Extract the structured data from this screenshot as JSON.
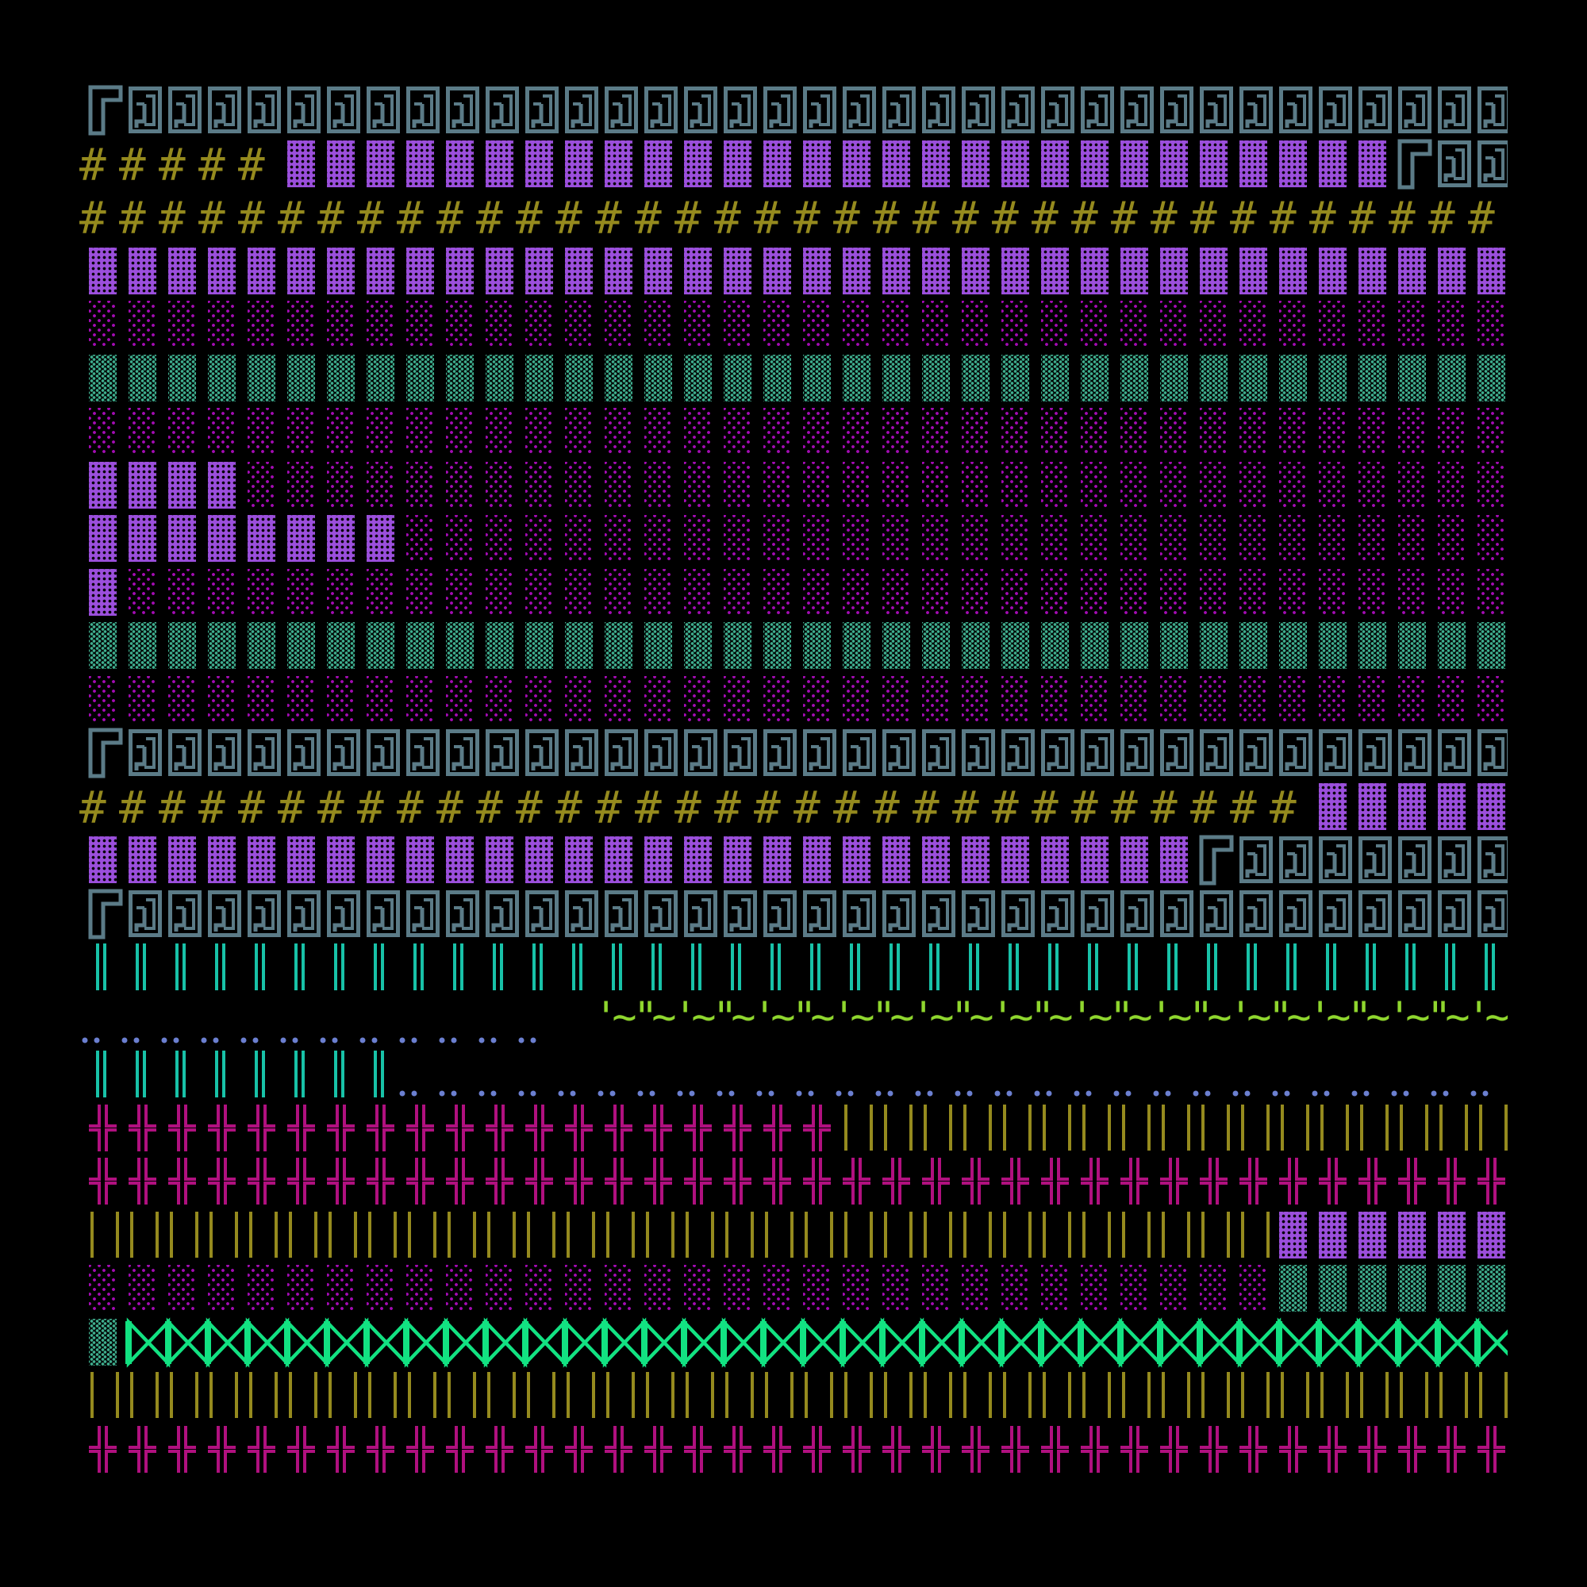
{
  "background": "#000000",
  "glyphs": {
    "corner": {
      "char": "╔",
      "color": "#5b7b87"
    },
    "box": {
      "char": "▣",
      "color": "#5b7b87"
    },
    "hash": {
      "char": "#",
      "color": "#958a1e"
    },
    "block": {
      "char": "▓",
      "color": "#9b4fdc"
    },
    "mag": {
      "char": "░",
      "color": "#a40cb4"
    },
    "teal": {
      "char": "▒",
      "color": "#3fae8e"
    },
    "vbar": {
      "char": "‖",
      "color": "#18c2a8"
    },
    "dots": {
      "char": "‥",
      "color": "#6b7fd0"
    },
    "wave": {
      "chars": [
        "'~",
        "\"~"
      ],
      "color": "#8fd62e"
    },
    "cross": {
      "char": "╬",
      "color": "#b0107f"
    },
    "ybar": {
      "char": "| |",
      "color": "#958a1e"
    },
    "bowtie": {
      "char": "⋈",
      "color": "#12e282"
    }
  },
  "rows": [
    [
      [
        "corner",
        1
      ],
      [
        "box",
        35
      ]
    ],
    [
      [
        "hash",
        5
      ],
      [
        "block",
        28
      ],
      [
        "corner",
        1
      ],
      [
        "box",
        2
      ]
    ],
    [
      [
        "hash",
        36
      ]
    ],
    [
      [
        "block",
        36
      ]
    ],
    [
      [
        "mag",
        36
      ]
    ],
    [
      [
        "teal",
        36
      ]
    ],
    [
      [
        "mag",
        36
      ]
    ],
    [
      [
        "block",
        4
      ],
      [
        "mag",
        32
      ]
    ],
    [
      [
        "block",
        8
      ],
      [
        "mag",
        28
      ]
    ],
    [
      [
        "block",
        1
      ],
      [
        "mag",
        35
      ]
    ],
    [
      [
        "teal",
        36
      ]
    ],
    [
      [
        "mag",
        36
      ]
    ],
    [
      [
        "corner",
        1
      ],
      [
        "box",
        35
      ]
    ],
    [
      [
        "hash",
        31
      ],
      [
        "block",
        5
      ]
    ],
    [
      [
        "block",
        28
      ],
      [
        "corner",
        1
      ],
      [
        "box",
        7
      ]
    ],
    [
      [
        "corner",
        1
      ],
      [
        "box",
        35
      ]
    ],
    [
      [
        "vbar",
        36
      ]
    ],
    [
      [
        "dots",
        12
      ],
      [
        "wave",
        24
      ]
    ],
    [
      [
        "vbar",
        8
      ],
      [
        "dots",
        28
      ]
    ],
    [
      [
        "cross",
        19
      ],
      [
        "ybar",
        17
      ]
    ],
    [
      [
        "cross",
        36
      ]
    ],
    [
      [
        "ybar",
        30
      ],
      [
        "block",
        6
      ]
    ],
    [
      [
        "mag",
        30
      ],
      [
        "teal",
        6
      ]
    ],
    [
      [
        "teal",
        1
      ],
      [
        "bowtie",
        35
      ]
    ],
    [
      [
        "ybar",
        36
      ]
    ],
    [
      [
        "cross",
        36
      ]
    ]
  ]
}
